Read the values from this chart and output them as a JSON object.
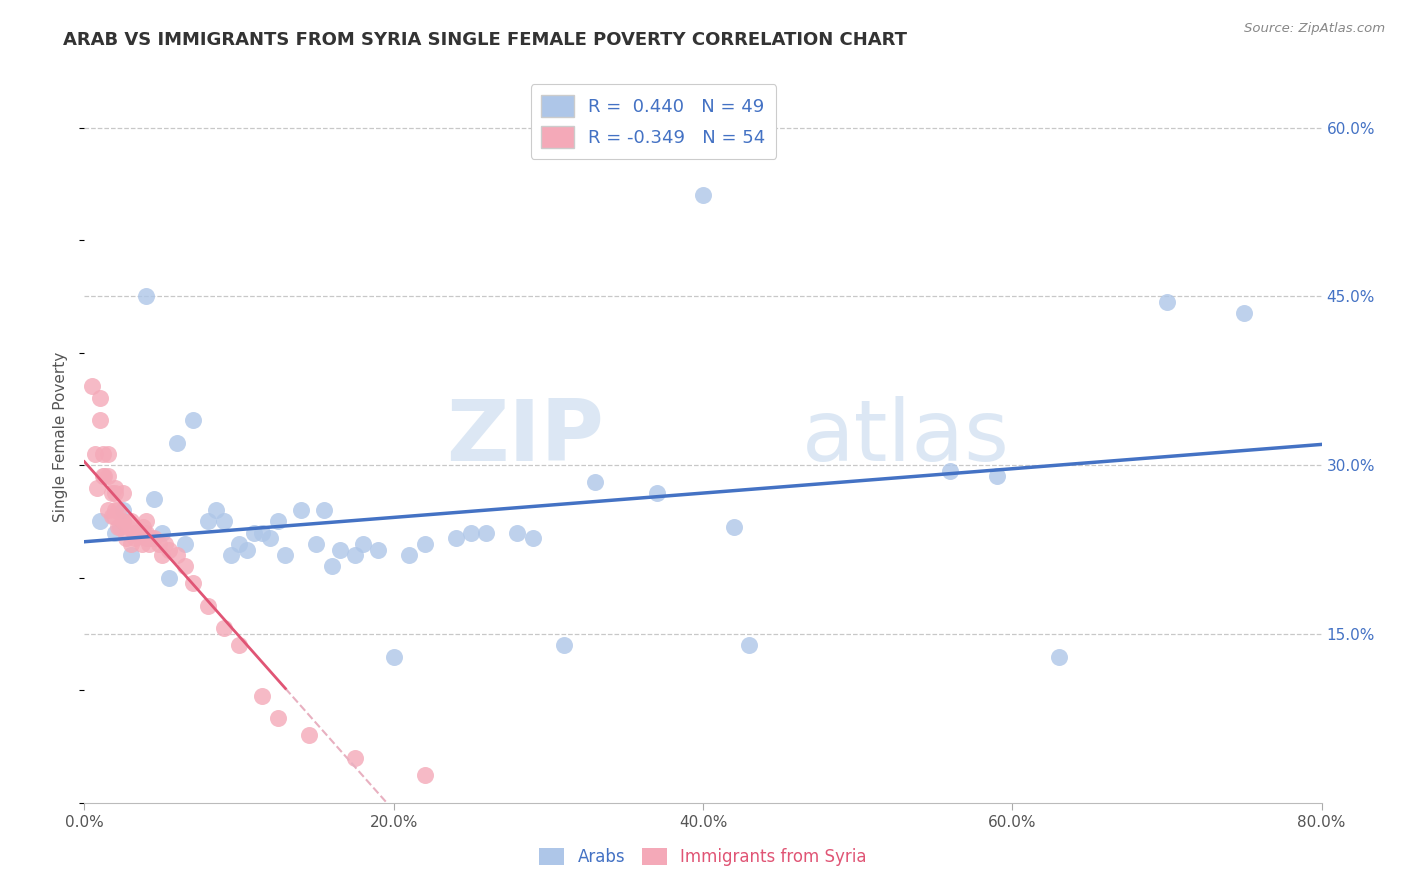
{
  "title": "ARAB VS IMMIGRANTS FROM SYRIA SINGLE FEMALE POVERTY CORRELATION CHART",
  "source": "Source: ZipAtlas.com",
  "ylabel": "Single Female Poverty",
  "xlim": [
    0.0,
    0.8
  ],
  "ylim": [
    0.0,
    0.65
  ],
  "xticks": [
    0.0,
    0.2,
    0.4,
    0.6,
    0.8
  ],
  "xtick_labels": [
    "0.0%",
    "20.0%",
    "40.0%",
    "60.0%",
    "80.0%"
  ],
  "yticks_right": [
    0.15,
    0.3,
    0.45,
    0.6
  ],
  "ytick_labels_right": [
    "15.0%",
    "30.0%",
    "45.0%",
    "60.0%"
  ],
  "legend_label_blue": "R =  0.440   N = 49",
  "legend_label_pink": "R = -0.349   N = 54",
  "bottom_legend_blue": "Arabs",
  "bottom_legend_pink": "Immigrants from Syria",
  "blue_scatter_x": [
    0.01,
    0.02,
    0.025,
    0.03,
    0.04,
    0.045,
    0.05,
    0.055,
    0.06,
    0.065,
    0.07,
    0.08,
    0.085,
    0.09,
    0.095,
    0.1,
    0.105,
    0.11,
    0.115,
    0.12,
    0.125,
    0.13,
    0.14,
    0.15,
    0.155,
    0.16,
    0.165,
    0.175,
    0.18,
    0.19,
    0.2,
    0.21,
    0.22,
    0.24,
    0.25,
    0.26,
    0.28,
    0.29,
    0.31,
    0.33,
    0.37,
    0.4,
    0.42,
    0.43,
    0.56,
    0.59,
    0.63,
    0.7,
    0.75
  ],
  "blue_scatter_y": [
    0.25,
    0.24,
    0.26,
    0.22,
    0.45,
    0.27,
    0.24,
    0.2,
    0.32,
    0.23,
    0.34,
    0.25,
    0.26,
    0.25,
    0.22,
    0.23,
    0.225,
    0.24,
    0.24,
    0.235,
    0.25,
    0.22,
    0.26,
    0.23,
    0.26,
    0.21,
    0.225,
    0.22,
    0.23,
    0.225,
    0.13,
    0.22,
    0.23,
    0.235,
    0.24,
    0.24,
    0.24,
    0.235,
    0.14,
    0.285,
    0.275,
    0.54,
    0.245,
    0.14,
    0.295,
    0.29,
    0.13,
    0.445,
    0.435
  ],
  "pink_scatter_x": [
    0.005,
    0.007,
    0.008,
    0.01,
    0.01,
    0.012,
    0.012,
    0.013,
    0.015,
    0.015,
    0.015,
    0.018,
    0.018,
    0.019,
    0.02,
    0.02,
    0.02,
    0.022,
    0.022,
    0.023,
    0.025,
    0.025,
    0.025,
    0.027,
    0.028,
    0.03,
    0.03,
    0.032,
    0.033,
    0.035,
    0.035,
    0.037,
    0.038,
    0.04,
    0.04,
    0.04,
    0.042,
    0.043,
    0.045,
    0.048,
    0.05,
    0.052,
    0.055,
    0.06,
    0.065,
    0.07,
    0.08,
    0.09,
    0.1,
    0.115,
    0.125,
    0.145,
    0.175,
    0.22
  ],
  "pink_scatter_y": [
    0.37,
    0.31,
    0.28,
    0.34,
    0.36,
    0.31,
    0.29,
    0.29,
    0.26,
    0.29,
    0.31,
    0.255,
    0.275,
    0.255,
    0.28,
    0.26,
    0.275,
    0.245,
    0.26,
    0.245,
    0.25,
    0.25,
    0.275,
    0.235,
    0.245,
    0.25,
    0.23,
    0.24,
    0.235,
    0.24,
    0.24,
    0.23,
    0.245,
    0.24,
    0.235,
    0.25,
    0.23,
    0.235,
    0.235,
    0.23,
    0.22,
    0.23,
    0.225,
    0.22,
    0.21,
    0.195,
    0.175,
    0.155,
    0.14,
    0.095,
    0.075,
    0.06,
    0.04,
    0.025
  ],
  "blue_color": "#aec6e8",
  "pink_color": "#f4a9b8",
  "blue_line_color": "#4472C4",
  "pink_line_color": "#E05575",
  "pink_dash_color": "#e8b0c0",
  "watermark_text": "ZIPatlas",
  "watermark_color": "#c8ddf0",
  "background_color": "#ffffff",
  "grid_color": "#c8c8c8",
  "title_color": "#333333",
  "axis_label_color": "#555555",
  "right_tick_color": "#4472C4",
  "legend_text_color": "#4472C4"
}
